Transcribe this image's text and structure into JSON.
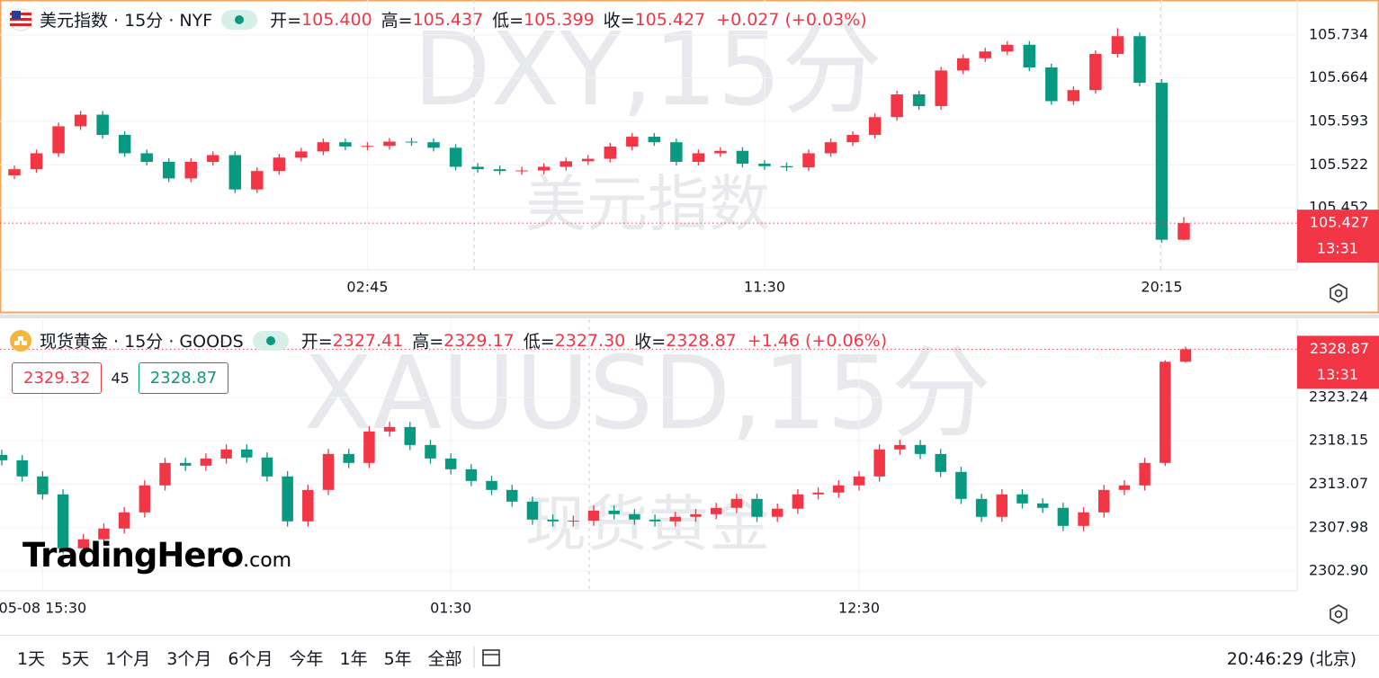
{
  "chart_data": [
    {
      "type": "candlestick",
      "title": "美元指数 · 15分 · NYF",
      "ohlc": [
        {
          "label": "开=",
          "value": "105.400"
        },
        {
          "label": "高=",
          "value": "105.437"
        },
        {
          "label": "低=",
          "value": "105.399"
        },
        {
          "label": "收=",
          "value": "105.427"
        }
      ],
      "change": "+0.027 (+0.03%)",
      "watermark": "DXY,15分",
      "watermark_sub": "美元指数",
      "up_color": "#f23645",
      "down_color": "#089981",
      "categories": [
        null,
        null,
        null,
        null,
        null,
        null,
        null,
        null,
        null,
        null,
        null,
        null,
        null,
        null,
        null,
        null,
        "02:45",
        null,
        null,
        null,
        null,
        null,
        null,
        null,
        null,
        null,
        null,
        null,
        null,
        null,
        null,
        null,
        null,
        null,
        "11:30",
        null,
        null,
        null,
        null,
        null,
        null,
        null,
        null,
        null,
        null,
        null,
        null,
        null,
        null,
        null,
        null,
        null,
        "20:15",
        null
      ],
      "open": [
        105.505,
        105.515,
        105.541,
        105.585,
        105.604,
        105.571,
        105.541,
        105.527,
        105.5,
        105.527,
        105.538,
        105.482,
        105.512,
        105.534,
        105.544,
        105.559,
        105.552,
        105.553,
        105.56,
        105.559,
        105.55,
        105.519,
        105.515,
        105.512,
        105.513,
        105.519,
        105.528,
        105.532,
        105.552,
        105.568,
        105.559,
        105.527,
        105.541,
        105.545,
        105.524,
        105.52,
        105.518,
        105.541,
        105.559,
        105.571,
        105.6,
        105.637,
        105.618,
        105.676,
        105.696,
        105.707,
        105.718,
        105.681,
        105.626,
        105.644,
        105.703,
        105.732,
        105.656,
        105.4
      ],
      "high": [
        105.521,
        105.547,
        105.591,
        105.61,
        105.61,
        105.577,
        105.547,
        105.533,
        105.533,
        105.544,
        105.544,
        105.518,
        105.54,
        105.55,
        105.565,
        105.565,
        105.559,
        105.566,
        105.566,
        105.565,
        105.556,
        105.525,
        105.521,
        105.519,
        105.525,
        105.534,
        105.538,
        105.558,
        105.574,
        105.574,
        105.565,
        105.547,
        105.551,
        105.551,
        105.53,
        105.526,
        105.547,
        105.565,
        105.577,
        105.606,
        105.643,
        105.643,
        105.682,
        105.702,
        105.713,
        105.724,
        105.724,
        105.687,
        105.65,
        105.709,
        105.745,
        105.738,
        105.662,
        105.437
      ],
      "low": [
        105.499,
        105.509,
        105.535,
        105.579,
        105.565,
        105.535,
        105.521,
        105.494,
        105.494,
        105.521,
        105.476,
        105.476,
        105.506,
        105.528,
        105.538,
        105.546,
        105.546,
        105.547,
        105.553,
        105.544,
        105.513,
        105.509,
        105.506,
        105.506,
        105.507,
        105.513,
        105.522,
        105.526,
        105.546,
        105.553,
        105.521,
        105.521,
        105.535,
        105.518,
        105.514,
        105.512,
        105.512,
        105.535,
        105.553,
        105.565,
        105.594,
        105.612,
        105.612,
        105.67,
        105.69,
        105.701,
        105.675,
        105.62,
        105.62,
        105.638,
        105.697,
        105.65,
        105.395,
        105.399
      ],
      "close": [
        105.515,
        105.541,
        105.585,
        105.604,
        105.571,
        105.541,
        105.527,
        105.5,
        105.527,
        105.538,
        105.482,
        105.512,
        105.534,
        105.544,
        105.559,
        105.552,
        105.553,
        105.56,
        105.559,
        105.55,
        105.519,
        105.515,
        105.512,
        105.513,
        105.519,
        105.528,
        105.532,
        105.552,
        105.568,
        105.559,
        105.527,
        105.541,
        105.545,
        105.524,
        105.52,
        105.518,
        105.541,
        105.559,
        105.571,
        105.6,
        105.637,
        105.618,
        105.676,
        105.696,
        105.707,
        105.718,
        105.681,
        105.626,
        105.644,
        105.703,
        105.732,
        105.656,
        105.4,
        105.427
      ],
      "ylim": [
        105.351,
        105.791
      ],
      "yticks": [
        105.734,
        105.664,
        105.593,
        105.522,
        105.452
      ],
      "last_price": 105.427,
      "last_time": "13:31",
      "grid": true
    },
    {
      "type": "candlestick",
      "title": "现货黄金 · 15分 · GOODS",
      "ohlc": [
        {
          "label": "开=",
          "value": "2327.41"
        },
        {
          "label": "高=",
          "value": "2329.17"
        },
        {
          "label": "低=",
          "value": "2327.30"
        },
        {
          "label": "收=",
          "value": "2328.87"
        }
      ],
      "change": "+1.46 (+0.06%)",
      "watermark": "XAUUSD,15分",
      "watermark_sub": "现货黄金",
      "up_color": "#f23645",
      "down_color": "#089981",
      "quote": {
        "bid": 2329.32,
        "spread": 45,
        "ask": 2328.87
      },
      "categories": [
        null,
        null,
        "05-08 15:30",
        null,
        null,
        null,
        null,
        null,
        null,
        null,
        null,
        null,
        null,
        null,
        null,
        null,
        null,
        null,
        null,
        null,
        null,
        null,
        "01:30",
        null,
        null,
        null,
        null,
        null,
        null,
        null,
        null,
        null,
        null,
        null,
        null,
        null,
        null,
        null,
        null,
        null,
        null,
        null,
        "12:30",
        null,
        null,
        null,
        null,
        null,
        null,
        null,
        null,
        null,
        null,
        null,
        null,
        null,
        null,
        null,
        null
      ],
      "open": [
        2316.5,
        2315.87,
        2313.98,
        2311.88,
        2305.56,
        2306.62,
        2307.88,
        2309.77,
        2312.93,
        2315.56,
        2315.24,
        2316.08,
        2317.14,
        2316.2,
        2313.98,
        2308.72,
        2312.4,
        2316.61,
        2315.56,
        2319.24,
        2319.77,
        2317.66,
        2316.08,
        2314.82,
        2313.45,
        2312.4,
        2311.03,
        2308.93,
        2308.72,
        2308.8,
        2309.98,
        2309.56,
        2308.93,
        2308.72,
        2309.25,
        2309.56,
        2310.3,
        2311.35,
        2309.25,
        2310.2,
        2311.88,
        2312.09,
        2312.93,
        2313.98,
        2317.14,
        2317.66,
        2316.61,
        2314.51,
        2311.35,
        2309.25,
        2311.88,
        2310.82,
        2310.3,
        2308.19,
        2309.77,
        2312.4,
        2312.93,
        2315.56,
        2327.41
      ],
      "high": [
        2317.1,
        2316.47,
        2314.58,
        2312.48,
        2307.22,
        2308.48,
        2310.37,
        2313.53,
        2316.16,
        2316.16,
        2316.68,
        2317.74,
        2317.74,
        2316.8,
        2314.58,
        2313.0,
        2317.21,
        2317.21,
        2319.84,
        2320.37,
        2320.37,
        2318.26,
        2316.68,
        2315.42,
        2314.05,
        2313.0,
        2311.63,
        2309.53,
        2309.4,
        2310.58,
        2310.58,
        2310.16,
        2309.53,
        2309.85,
        2310.16,
        2310.9,
        2311.95,
        2311.95,
        2310.8,
        2312.48,
        2312.69,
        2313.53,
        2314.58,
        2317.74,
        2318.26,
        2318.26,
        2317.21,
        2315.11,
        2311.95,
        2312.48,
        2312.48,
        2311.42,
        2310.9,
        2310.37,
        2313.0,
        2313.53,
        2316.16,
        2327.6,
        2329.17
      ],
      "low": [
        2315.27,
        2313.38,
        2311.28,
        2304.96,
        2304.96,
        2306.02,
        2307.28,
        2309.17,
        2312.33,
        2314.64,
        2314.64,
        2315.48,
        2315.6,
        2313.38,
        2308.12,
        2308.12,
        2311.8,
        2314.96,
        2314.96,
        2318.64,
        2317.06,
        2315.48,
        2314.22,
        2312.85,
        2311.8,
        2310.43,
        2308.33,
        2308.12,
        2308.12,
        2308.2,
        2308.96,
        2308.33,
        2308.12,
        2308.12,
        2308.65,
        2308.96,
        2309.7,
        2308.65,
        2308.65,
        2309.6,
        2311.28,
        2311.49,
        2312.33,
        2313.38,
        2316.54,
        2316.01,
        2313.91,
        2310.75,
        2308.65,
        2308.65,
        2310.22,
        2309.7,
        2307.59,
        2307.59,
        2309.17,
        2311.8,
        2312.33,
        2315.2,
        2327.3
      ],
      "close": [
        2315.87,
        2313.98,
        2311.88,
        2305.56,
        2306.62,
        2307.88,
        2309.77,
        2312.93,
        2315.56,
        2315.24,
        2316.08,
        2317.14,
        2316.2,
        2313.98,
        2308.72,
        2312.4,
        2316.61,
        2315.56,
        2319.24,
        2319.77,
        2317.66,
        2316.08,
        2314.82,
        2313.45,
        2312.4,
        2311.03,
        2308.93,
        2308.72,
        2308.8,
        2309.98,
        2309.56,
        2308.93,
        2308.72,
        2309.25,
        2309.56,
        2310.3,
        2311.35,
        2309.25,
        2310.2,
        2311.88,
        2312.09,
        2312.93,
        2313.98,
        2317.14,
        2317.66,
        2316.61,
        2314.51,
        2311.35,
        2309.25,
        2311.88,
        2310.82,
        2310.3,
        2308.19,
        2309.77,
        2312.4,
        2312.93,
        2315.56,
        2327.41,
        2328.87
      ],
      "ylim": [
        2300.59,
        2332.39
      ],
      "yticks": [
        2323.24,
        2318.15,
        2313.07,
        2307.98,
        {
          "value": 2302.9,
          "label": "2302.90"
        }
      ],
      "last_price": 2328.87,
      "last_time": "13:31",
      "grid": true
    }
  ],
  "logo": {
    "name": "TradingHero",
    "suffix": ".com"
  },
  "toolbar": {
    "ranges": [
      "1天",
      "5天",
      "1个月",
      "3个月",
      "6个月",
      "今年",
      "1年",
      "5年",
      "全部"
    ],
    "clock": "20:46:29 (北京)"
  }
}
